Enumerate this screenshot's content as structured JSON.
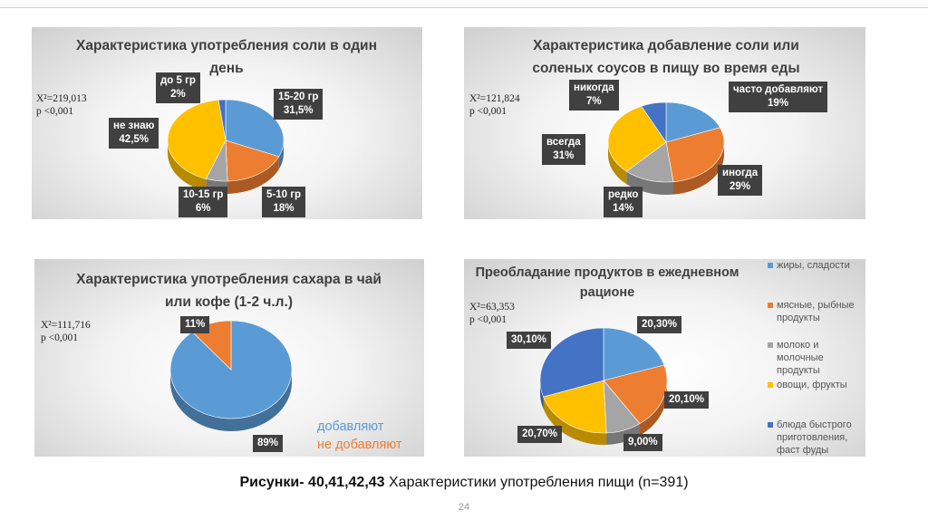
{
  "chart_data": [
    {
      "type": "pie",
      "title": "Характеристика употребления соли в один день",
      "stat_chi": "X²=219,013",
      "stat_p": "p <0,001",
      "slices": [
        {
          "label": "15-20 гр",
          "value_text": "31,5%",
          "value": 31.5,
          "color": "#5b9bd5"
        },
        {
          "label": "5-10 гр",
          "value_text": "18%",
          "value": 18,
          "color": "#ed7d31"
        },
        {
          "label": "10-15 гр",
          "value_text": "6%",
          "value": 6,
          "color": "#a5a5a5"
        },
        {
          "label": "не знаю",
          "value_text": "42,5%",
          "value": 42.5,
          "color": "#ffc000"
        },
        {
          "label": "до 5 гр",
          "value_text": "2%",
          "value": 2,
          "color": "#4472c4"
        }
      ]
    },
    {
      "type": "pie",
      "title": "Характеристика добавление соли или соленых соусов в пищу во время еды",
      "stat_chi": "X²=121,824",
      "stat_p": "p <0,001",
      "slices": [
        {
          "label": "часто добавляют",
          "value_text": "19%",
          "value": 19,
          "color": "#5b9bd5"
        },
        {
          "label": "иногда",
          "value_text": "29%",
          "value": 29,
          "color": "#ed7d31"
        },
        {
          "label": "редко",
          "value_text": "14%",
          "value": 14,
          "color": "#a5a5a5"
        },
        {
          "label": "всегда",
          "value_text": "31%",
          "value": 31,
          "color": "#ffc000"
        },
        {
          "label": "никогда",
          "value_text": "7%",
          "value": 7,
          "color": "#4472c4"
        }
      ]
    },
    {
      "type": "pie",
      "title": "Характеристика употребления сахара в чай или кофе (1-2 ч.л.)",
      "stat_chi": "X²=111,716",
      "stat_p": "p <0,001",
      "legend": [
        "добавляют",
        "не добавляют"
      ],
      "slices": [
        {
          "label": "добавляют",
          "value_text": "89%",
          "value": 89,
          "color": "#5b9bd5"
        },
        {
          "label": "не добавляют",
          "value_text": "11%",
          "value": 11,
          "color": "#ed7d31"
        }
      ]
    },
    {
      "type": "pie",
      "title": "Преобладание продуктов в ежедневном рационе",
      "stat_chi": "X²=63,353",
      "stat_p": "p <0,001",
      "legend": [
        "жиры, сладости",
        "мясные, рыбные продукты",
        "молоко и молочные продукты",
        "овощи, фрукты",
        "блюда быстрого приготовления, фаст фуды"
      ],
      "slices": [
        {
          "label": "жиры, сладости",
          "value_text": "20,30%",
          "value": 20.3,
          "color": "#5b9bd5"
        },
        {
          "label": "мясные, рыбные продукты",
          "value_text": "20,10%",
          "value": 20.1,
          "color": "#ed7d31"
        },
        {
          "label": "молоко и молочные продукты",
          "value_text": "9,00%",
          "value": 9.0,
          "color": "#a5a5a5"
        },
        {
          "label": "овощи, фрукты",
          "value_text": "20,70%",
          "value": 20.7,
          "color": "#ffc000"
        },
        {
          "label": "блюда быстрого приготовления, фаст фуды",
          "value_text": "30,10%",
          "value": 30.1,
          "color": "#4472c4"
        }
      ]
    }
  ],
  "caption_bold": "Рисунки- 40,41,42,43",
  "caption_text": " Характеристики употребления пищи (n=391)",
  "page_number": "24"
}
